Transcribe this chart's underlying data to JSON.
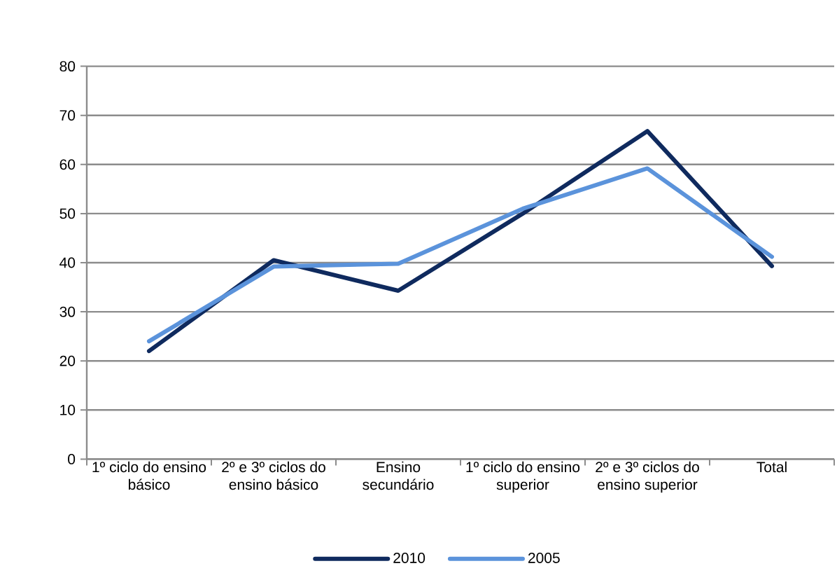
{
  "chart_data": {
    "type": "line",
    "categories": [
      "1º ciclo do ensino básico",
      "2º e 3º ciclos do ensino básico",
      "Ensino secundário",
      "1º ciclo do ensino superior",
      "2º e 3º ciclos do ensino superior",
      "Total"
    ],
    "series": [
      {
        "name": "2010",
        "color": "#0f2a5e",
        "values": [
          22,
          40.5,
          34.3,
          50,
          66.8,
          39.3
        ]
      },
      {
        "name": "2005",
        "color": "#5b93db",
        "values": [
          24,
          39.2,
          39.8,
          51,
          59.2,
          41.2
        ]
      }
    ],
    "ylim": [
      0,
      80
    ],
    "yticks": [
      0,
      10,
      20,
      30,
      40,
      50,
      60,
      70,
      80
    ],
    "grid": "y",
    "legend": "bottom"
  }
}
